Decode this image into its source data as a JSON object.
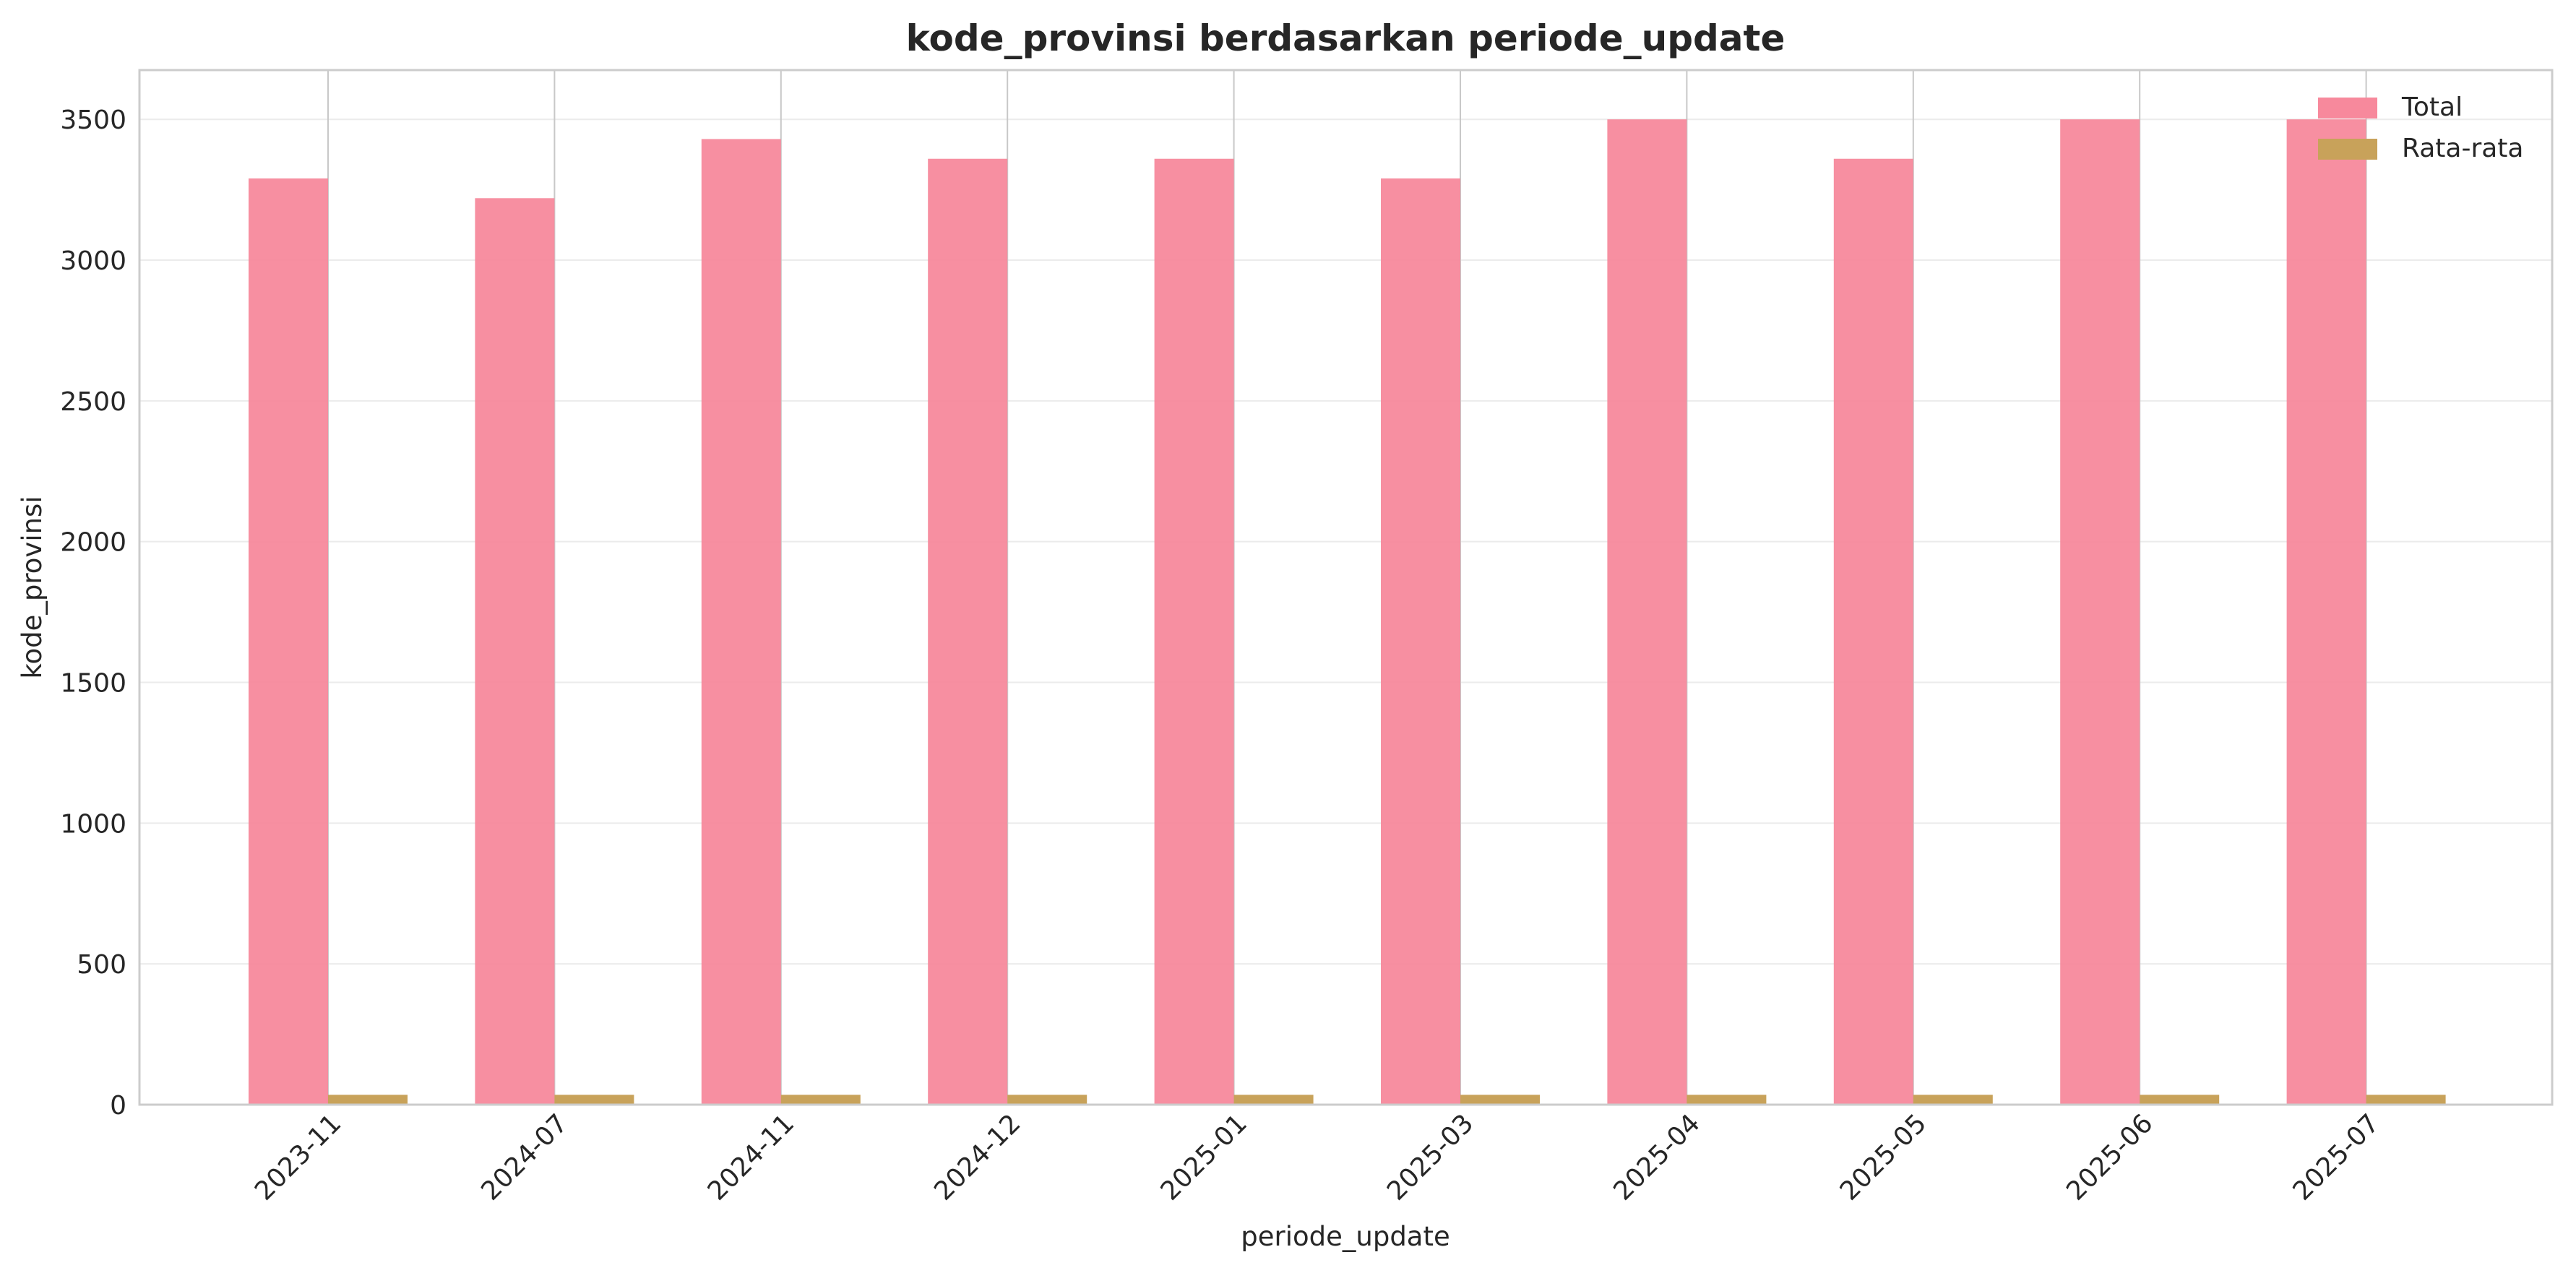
{
  "chart_data": {
    "type": "bar",
    "title": "kode_provinsi berdasarkan periode_update",
    "xlabel": "periode_update",
    "ylabel": "kode_provinsi",
    "categories": [
      "2023-11",
      "2024-07",
      "2024-11",
      "2024-12",
      "2025-01",
      "2025-03",
      "2025-04",
      "2025-05",
      "2025-06",
      "2025-07"
    ],
    "series": [
      {
        "name": "Total",
        "color": "#f7899c",
        "values": [
          3290,
          3220,
          3430,
          3360,
          3360,
          3290,
          3500,
          3360,
          3500,
          3500
        ]
      },
      {
        "name": "Rata-rata",
        "color": "#c8a25a",
        "values": [
          35,
          35,
          35,
          35,
          35,
          35,
          35,
          35,
          35,
          35
        ]
      }
    ],
    "yticks": [
      0,
      500,
      1000,
      1500,
      2000,
      2500,
      3000,
      3500
    ],
    "ylim": [
      0,
      3675
    ],
    "grid": true,
    "legend_position": "top-right"
  }
}
